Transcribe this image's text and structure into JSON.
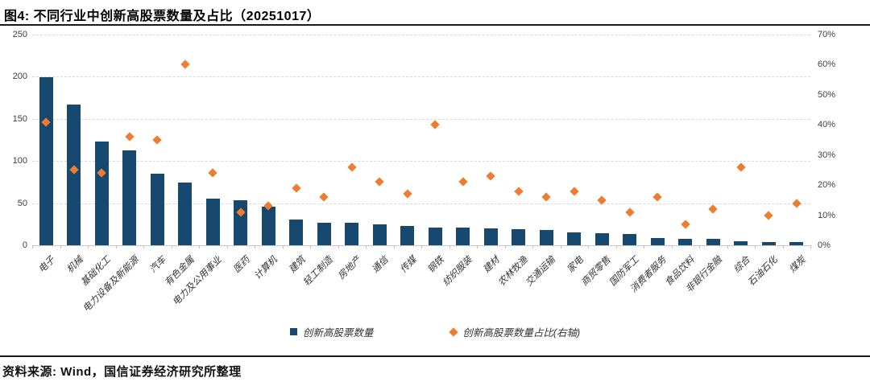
{
  "header": {
    "title": "图4: 不同行业中创新高股票数量及占比（20251017）"
  },
  "footer": {
    "source": "资料来源: Wind，国信证券经济研究所整理"
  },
  "legend": {
    "bars": "创新高股票数量",
    "dots": "创新高股票数量占比(右轴)"
  },
  "colors": {
    "bar": "#17486F",
    "dot": "#ED7D31",
    "grid": "#D9D9D9",
    "axis_text": "#404040",
    "rule": "#1A1A1A"
  },
  "chart_data": {
    "type": "bar",
    "title": "图4: 不同行业中创新高股票数量及占比（20251017）",
    "categories": [
      "电子",
      "机械",
      "基础化工",
      "电力设备及新能源",
      "汽车",
      "有色金属",
      "电力及公用事业",
      "医药",
      "计算机",
      "建筑",
      "轻工制造",
      "房地产",
      "通信",
      "传媒",
      "钢铁",
      "纺织服装",
      "建材",
      "农林牧渔",
      "交通运输",
      "家电",
      "商贸零售",
      "国防军工",
      "消费者服务",
      "食品饮料",
      "非银行金融",
      "综合",
      "石油石化",
      "煤炭"
    ],
    "series": [
      {
        "name": "创新高股票数量",
        "type": "bar",
        "axis": "left",
        "values": [
          199,
          167,
          123,
          113,
          85,
          74,
          55,
          53,
          46,
          31,
          27,
          27,
          25,
          23,
          21,
          21,
          20,
          19,
          18,
          15,
          14,
          13,
          9,
          8,
          8,
          5,
          4,
          4
        ]
      },
      {
        "name": "创新高股票数量占比(右轴)",
        "type": "scatter",
        "axis": "right",
        "values_pct": [
          41,
          25,
          24,
          36,
          35,
          60,
          24,
          11,
          13,
          19,
          16,
          26,
          21,
          17,
          40,
          21,
          23,
          18,
          16,
          18,
          15,
          11,
          16,
          7,
          12,
          26,
          10,
          14
        ]
      }
    ],
    "left_axis": {
      "label": "",
      "min": 0,
      "max": 250,
      "ticks": [
        0,
        50,
        100,
        150,
        200,
        250
      ]
    },
    "right_axis": {
      "label": "",
      "min": 0,
      "max": 70,
      "ticks_pct": [
        0,
        10,
        20,
        30,
        40,
        50,
        60,
        70
      ]
    },
    "grid": "horizontal-dashed",
    "legend_position": "bottom",
    "xlabel": "",
    "ylabel": ""
  }
}
